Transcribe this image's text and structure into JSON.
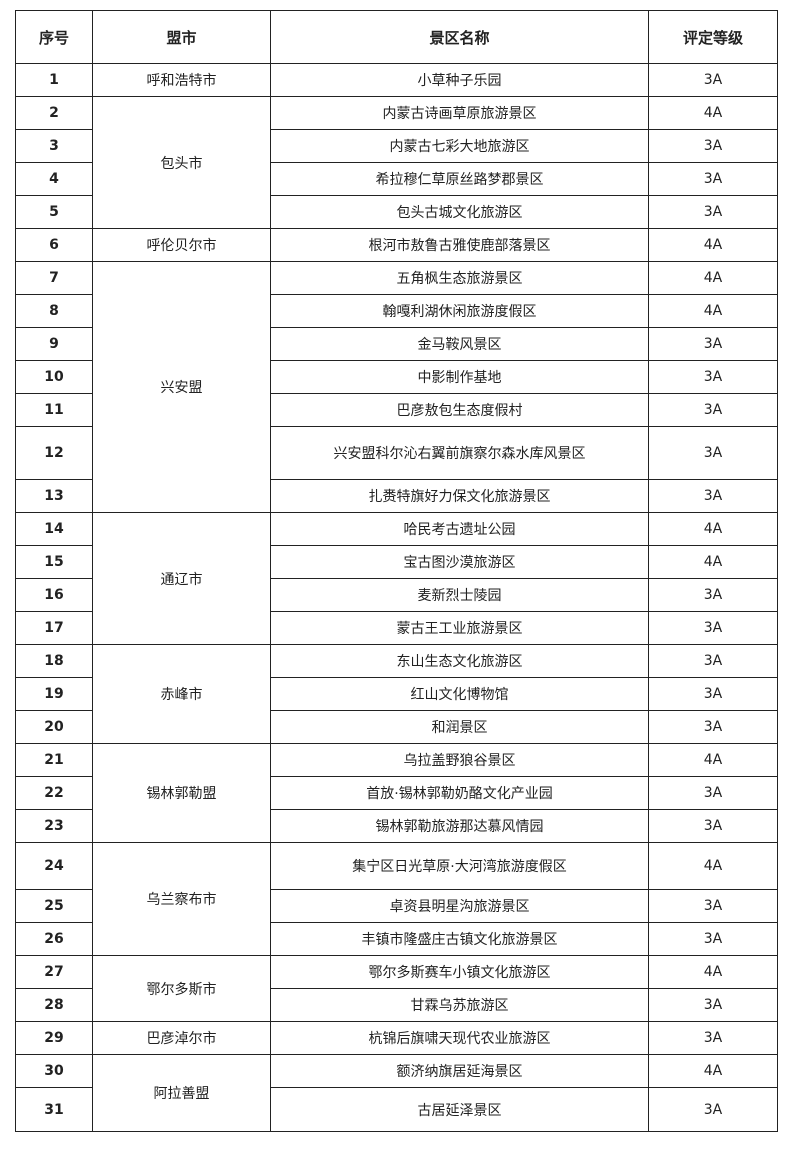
{
  "headers": [
    "序号",
    "盟市",
    "景区名称",
    "评定等级"
  ],
  "rows": [
    {
      "no": "1",
      "city": "呼和浩特市",
      "span": 1,
      "name": "小草种子乐园",
      "grade": "3A"
    },
    {
      "no": "2",
      "city": "包头市",
      "span": 4,
      "name": "内蒙古诗画草原旅游景区",
      "grade": "4A"
    },
    {
      "no": "3",
      "name": "内蒙古七彩大地旅游区",
      "grade": "3A"
    },
    {
      "no": "4",
      "name": "希拉穆仁草原丝路梦郡景区",
      "grade": "3A"
    },
    {
      "no": "5",
      "name": "包头古城文化旅游区",
      "grade": "3A"
    },
    {
      "no": "6",
      "city": "呼伦贝尔市",
      "span": 1,
      "name": "根河市敖鲁古雅使鹿部落景区",
      "grade": "4A"
    },
    {
      "no": "7",
      "city": "兴安盟",
      "span": 7,
      "name": "五角枫生态旅游景区",
      "grade": "4A"
    },
    {
      "no": "8",
      "name": "翰嘎利湖休闲旅游度假区",
      "grade": "4A"
    },
    {
      "no": "9",
      "name": "金马鞍风景区",
      "grade": "3A"
    },
    {
      "no": "10",
      "name": "中影制作基地",
      "grade": "3A"
    },
    {
      "no": "11",
      "name": "巴彦敖包生态度假村",
      "grade": "3A"
    },
    {
      "no": "12",
      "name": "兴安盟科尔沁右翼前旗察尔森水库风景区",
      "grade": "3A"
    },
    {
      "no": "13",
      "name": "扎赉特旗好力保文化旅游景区",
      "grade": "3A"
    },
    {
      "no": "14",
      "city": "通辽市",
      "span": 4,
      "name": "哈民考古遗址公园",
      "grade": "4A"
    },
    {
      "no": "15",
      "name": "宝古图沙漠旅游区",
      "grade": "4A"
    },
    {
      "no": "16",
      "name": "麦新烈士陵园",
      "grade": "3A"
    },
    {
      "no": "17",
      "name": "蒙古王工业旅游景区",
      "grade": "3A"
    },
    {
      "no": "18",
      "city": "赤峰市",
      "span": 3,
      "name": "东山生态文化旅游区",
      "grade": "3A"
    },
    {
      "no": "19",
      "name": "红山文化博物馆",
      "grade": "3A"
    },
    {
      "no": "20",
      "name": "和润景区",
      "grade": "3A"
    },
    {
      "no": "21",
      "city": "锡林郭勒盟",
      "span": 3,
      "name": "乌拉盖野狼谷景区",
      "grade": "4A"
    },
    {
      "no": "22",
      "name": "首放·锡林郭勒奶酪文化产业园",
      "grade": "3A"
    },
    {
      "no": "23",
      "name": "锡林郭勒旅游那达慕风情园",
      "grade": "3A"
    },
    {
      "no": "24",
      "city": "乌兰察布市",
      "span": 3,
      "name": "集宁区日光草原·大河湾旅游度假区",
      "grade": "4A"
    },
    {
      "no": "25",
      "name": "卓资县明星沟旅游景区",
      "grade": "3A"
    },
    {
      "no": "26",
      "name": "丰镇市隆盛庄古镇文化旅游景区",
      "grade": "3A"
    },
    {
      "no": "27",
      "city": "鄂尔多斯市",
      "span": 2,
      "name": "鄂尔多斯赛车小镇文化旅游区",
      "grade": "4A"
    },
    {
      "no": "28",
      "name": "甘霖乌苏旅游区",
      "grade": "3A"
    },
    {
      "no": "29",
      "city": "巴彦淖尔市",
      "span": 1,
      "name": "杭锦后旗啸天现代农业旅游区",
      "grade": "3A"
    },
    {
      "no": "30",
      "city": "阿拉善盟",
      "span": 2,
      "name": "额济纳旗居延海景区",
      "grade": "4A"
    },
    {
      "no": "31",
      "name": "古居延泽景区",
      "grade": "3A"
    }
  ]
}
